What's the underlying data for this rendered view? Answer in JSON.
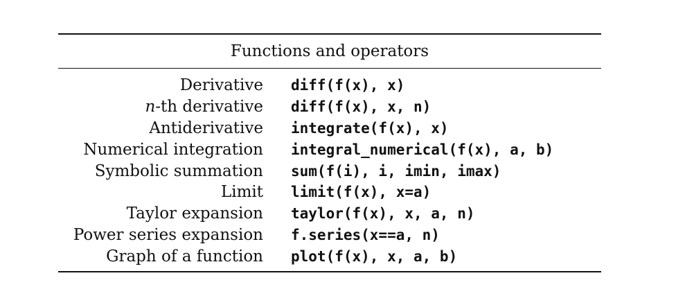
{
  "table": {
    "caption": "Functions and operators",
    "rows": [
      {
        "label": "Derivative",
        "code": "diff(f(x), x)"
      },
      {
        "label_italic": "n",
        "label_rest": "-th derivative",
        "code": "diff(f(x), x, n)"
      },
      {
        "label": "Antiderivative",
        "code": "integrate(f(x), x)"
      },
      {
        "label": "Numerical integration",
        "code": "integral_numerical(f(x), a, b)"
      },
      {
        "label": "Symbolic summation",
        "code": "sum(f(i), i, imin, imax)"
      },
      {
        "label": "Limit",
        "code": "limit(f(x), x=a)"
      },
      {
        "label": "Taylor expansion",
        "code": "taylor(f(x), x, a, n)"
      },
      {
        "label": "Power series expansion",
        "code": "f.series(x==a, n)"
      },
      {
        "label": "Graph of a function",
        "code": "plot(f(x), x, a, b)"
      }
    ]
  }
}
